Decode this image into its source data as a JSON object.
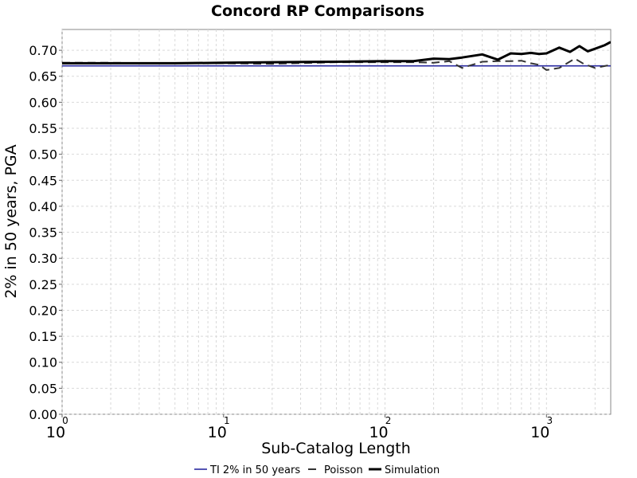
{
  "chart_data": {
    "type": "line",
    "title": "Concord RP Comparisons",
    "xlabel": "Sub-Catalog Length",
    "ylabel": "2% in 50 years, PGA",
    "x_scale": "log",
    "xlim": [
      1,
      2500
    ],
    "ylim": [
      0.0,
      0.74
    ],
    "y_ticks": [
      "0.00",
      "0.05",
      "0.10",
      "0.15",
      "0.20",
      "0.25",
      "0.30",
      "0.35",
      "0.40",
      "0.45",
      "0.50",
      "0.55",
      "0.60",
      "0.65",
      "0.70"
    ],
    "x_ticks": [
      {
        "base": "10",
        "exp": "0"
      },
      {
        "base": "10",
        "exp": "1"
      },
      {
        "base": "10",
        "exp": "2"
      },
      {
        "base": "10",
        "exp": "3"
      }
    ],
    "grid": true,
    "legend_position": "bottom",
    "series": [
      {
        "name": "TI 2% in 50 years",
        "color": "#2a2aa0",
        "style": "solid",
        "x": [
          1,
          2500
        ],
        "y": [
          0.67,
          0.67
        ]
      },
      {
        "name": "Poisson",
        "color": "#333333",
        "style": "dashed",
        "x": [
          1,
          2,
          5,
          10,
          20,
          50,
          100,
          150,
          200,
          250,
          300,
          400,
          500,
          600,
          700,
          800,
          900,
          1000,
          1200,
          1500,
          1700,
          2000,
          2500
        ],
        "y": [
          0.676,
          0.676,
          0.675,
          0.675,
          0.674,
          0.677,
          0.677,
          0.677,
          0.676,
          0.679,
          0.666,
          0.678,
          0.679,
          0.679,
          0.68,
          0.675,
          0.672,
          0.662,
          0.666,
          0.684,
          0.674,
          0.666,
          0.672
        ]
      },
      {
        "name": "Simulation",
        "color": "#000000",
        "style": "solid",
        "x": [
          1,
          2,
          5,
          10,
          20,
          50,
          100,
          150,
          200,
          250,
          300,
          400,
          500,
          600,
          700,
          800,
          900,
          1000,
          1200,
          1400,
          1600,
          1800,
          2000,
          2300,
          2500
        ],
        "y": [
          0.675,
          0.675,
          0.675,
          0.676,
          0.677,
          0.678,
          0.679,
          0.679,
          0.684,
          0.683,
          0.686,
          0.692,
          0.682,
          0.694,
          0.693,
          0.695,
          0.693,
          0.694,
          0.705,
          0.697,
          0.708,
          0.698,
          0.703,
          0.71,
          0.716
        ]
      }
    ]
  }
}
